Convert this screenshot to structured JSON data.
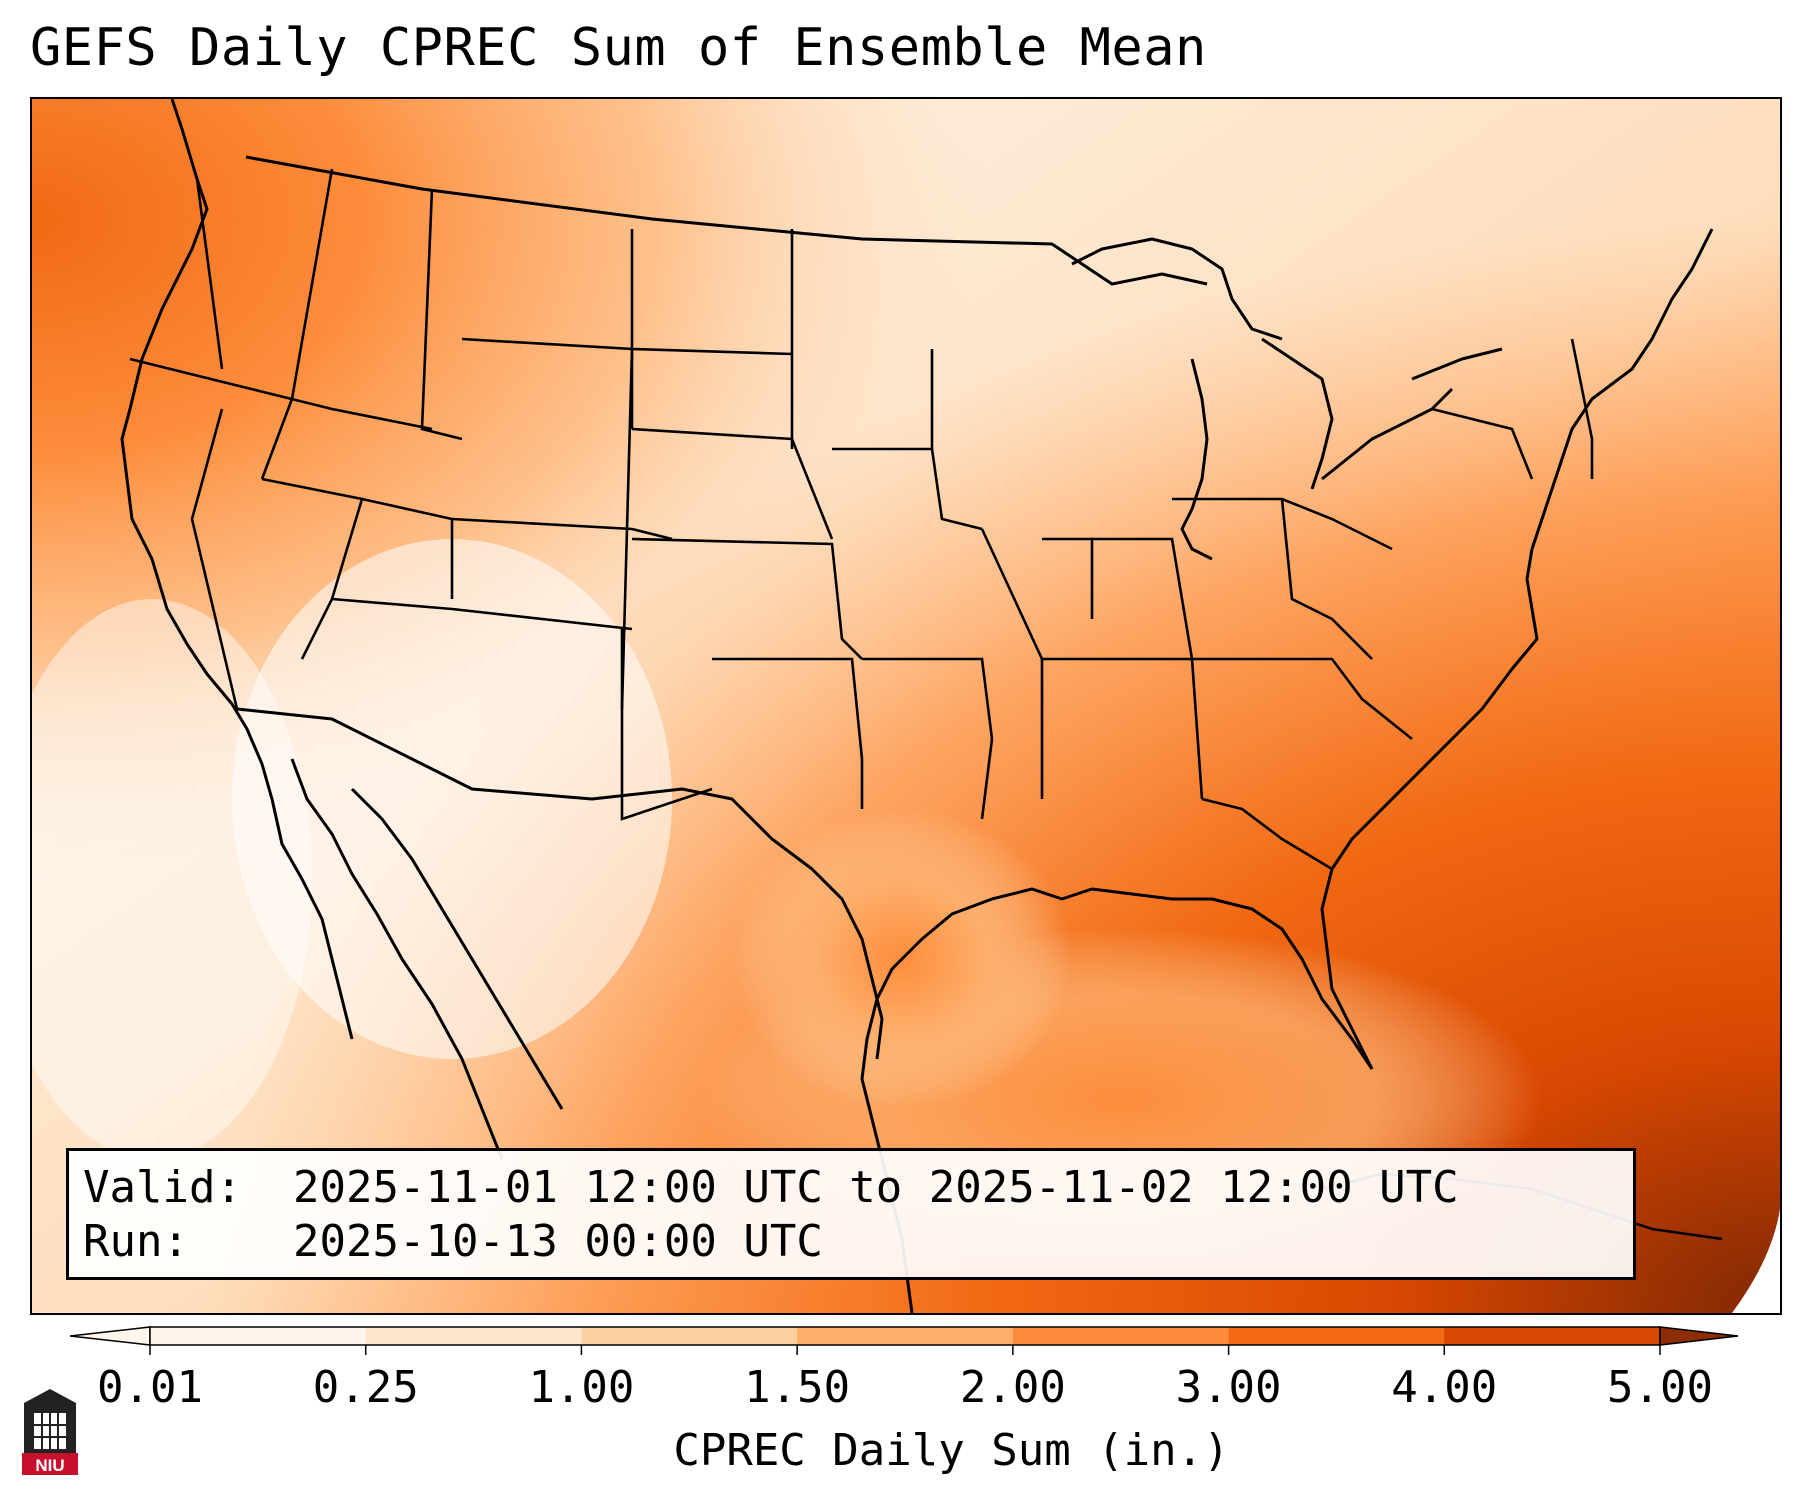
{
  "title": "GEFS Daily CPREC Sum of Ensemble Mean",
  "info": {
    "valid_label": "Valid:",
    "valid_value": "2025-11-01 12:00 UTC to 2025-11-02 12:00 UTC",
    "run_label": "Run:",
    "run_value": "2025-10-13 00:00 UTC"
  },
  "colorbar": {
    "label": "CPREC Daily Sum (in.)",
    "ticks": [
      "0.01",
      "0.25",
      "1.00",
      "1.50",
      "2.00",
      "3.00",
      "4.00",
      "5.00"
    ],
    "colors": [
      "#fff5eb",
      "#fee6ce",
      "#fdd0a2",
      "#fdae6b",
      "#fd8d3c",
      "#f16913",
      "#d94801",
      "#8c2d04"
    ],
    "extend": "both"
  },
  "map": {
    "projection": "Lambert Conformal (CONUS)",
    "coastline_color": "#000000",
    "region": "Continental United States"
  },
  "logo": {
    "text": "NIU",
    "color": "#c8102e"
  }
}
